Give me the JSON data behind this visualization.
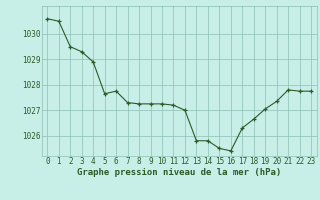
{
  "x": [
    0,
    1,
    2,
    3,
    4,
    5,
    6,
    7,
    8,
    9,
    10,
    11,
    12,
    13,
    14,
    15,
    16,
    17,
    18,
    19,
    20,
    21,
    22,
    23
  ],
  "y": [
    1030.6,
    1030.5,
    1029.5,
    1029.3,
    1028.9,
    1027.65,
    1027.75,
    1027.3,
    1027.25,
    1027.25,
    1027.25,
    1027.2,
    1027.0,
    1025.8,
    1025.8,
    1025.5,
    1025.4,
    1026.3,
    1026.65,
    1027.05,
    1027.35,
    1027.8,
    1027.75,
    1027.75
  ],
  "line_color": "#2d5a27",
  "marker_color": "#2d5a27",
  "bg_color": "#c8eee8",
  "grid_color": "#8cbfb5",
  "text_color": "#2d5a27",
  "xlabel": "Graphe pression niveau de la mer (hPa)",
  "ylim_min": 1025.2,
  "ylim_max": 1031.1,
  "yticks": [
    1026,
    1027,
    1028,
    1029,
    1030
  ],
  "xticks": [
    0,
    1,
    2,
    3,
    4,
    5,
    6,
    7,
    8,
    9,
    10,
    11,
    12,
    13,
    14,
    15,
    16,
    17,
    18,
    19,
    20,
    21,
    22,
    23
  ],
  "tick_fontsize": 5.5,
  "xlabel_fontsize": 6.5
}
